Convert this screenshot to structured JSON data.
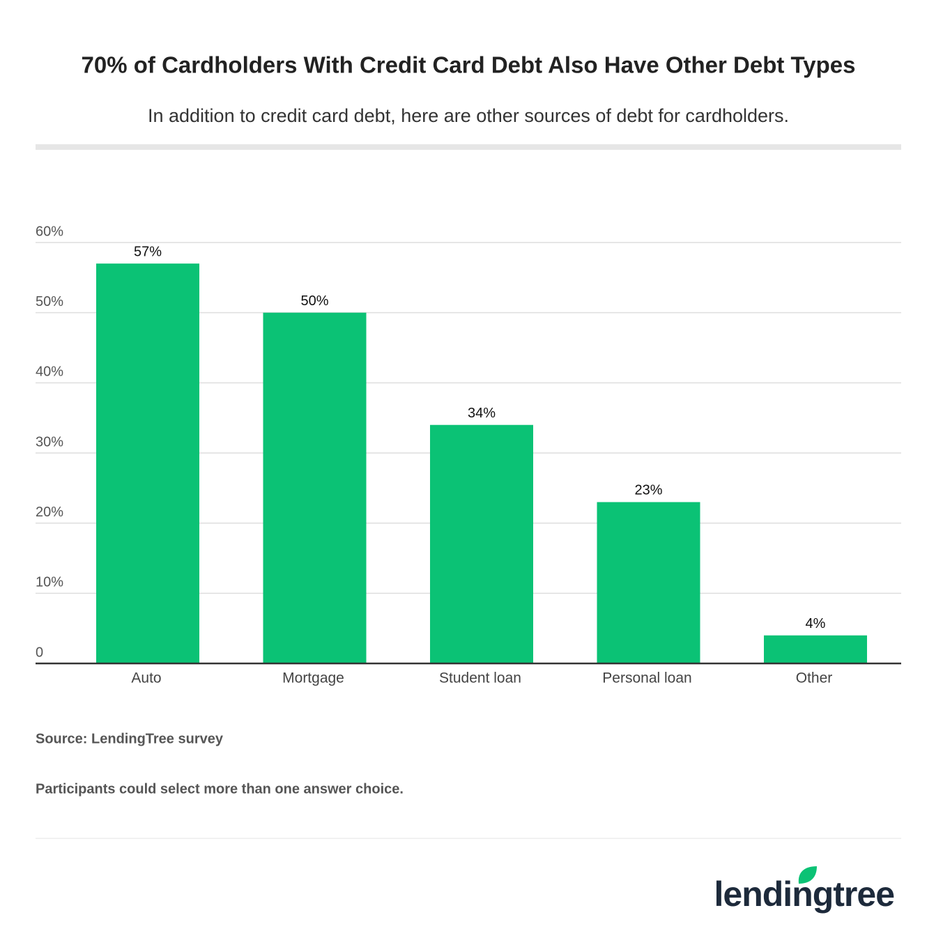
{
  "chart_data": {
    "type": "bar",
    "title": "70% of Cardholders With Credit Card Debt Also Have Other Debt Types",
    "subtitle": "In addition to credit card debt, here are other sources of debt for cardholders.",
    "categories": [
      "Auto",
      "Mortgage",
      "Student loan",
      "Personal loan",
      "Other"
    ],
    "values": [
      57,
      50,
      34,
      23,
      4
    ],
    "value_labels": [
      "57%",
      "50%",
      "34%",
      "23%",
      "4%"
    ],
    "color": "#0bc275",
    "ylim": [
      0,
      60
    ],
    "yticks": [
      0,
      {
        "value": 10,
        "label": "10%"
      },
      {
        "value": 20,
        "label": "20%"
      },
      {
        "value": 30,
        "label": "30%"
      },
      {
        "value": 40,
        "label": "40%"
      },
      {
        "value": 50,
        "label": "50%"
      },
      {
        "value": 60,
        "label": "60%"
      }
    ],
    "grid": true,
    "source": "Source: LendingTree survey",
    "note": "Participants could select more than one answer choice.",
    "logo": "lendingtree"
  }
}
